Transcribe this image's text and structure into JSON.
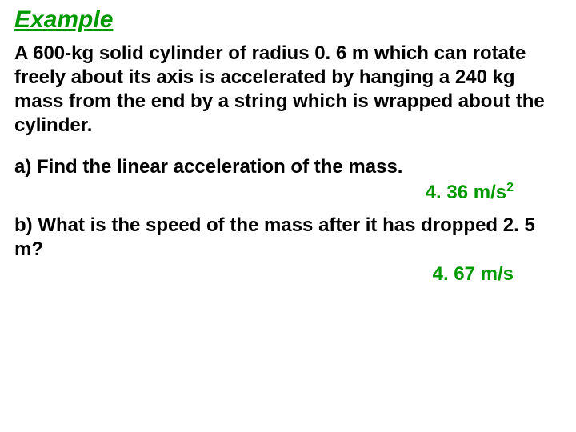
{
  "title": "Example",
  "problem": "A 600-kg solid cylinder of radius 0. 6 m which can rotate freely about its axis is accelerated by hanging a 240 kg mass from the end by a string which is wrapped about the cylinder.",
  "question_a": "a) Find the linear acceleration of the mass.",
  "answer_a_value": "4. 36 m/s",
  "answer_a_exp": "2",
  "question_b": "b) What is the speed of the mass after it has dropped 2. 5 m?",
  "answer_b": "4. 67 m/s",
  "colors": {
    "title_color": "#009900",
    "answer_color": "#009900",
    "text_color": "#000000",
    "background": "#ffffff"
  },
  "font": {
    "family": "Comic Sans MS",
    "title_size": 30,
    "body_size": 24
  }
}
